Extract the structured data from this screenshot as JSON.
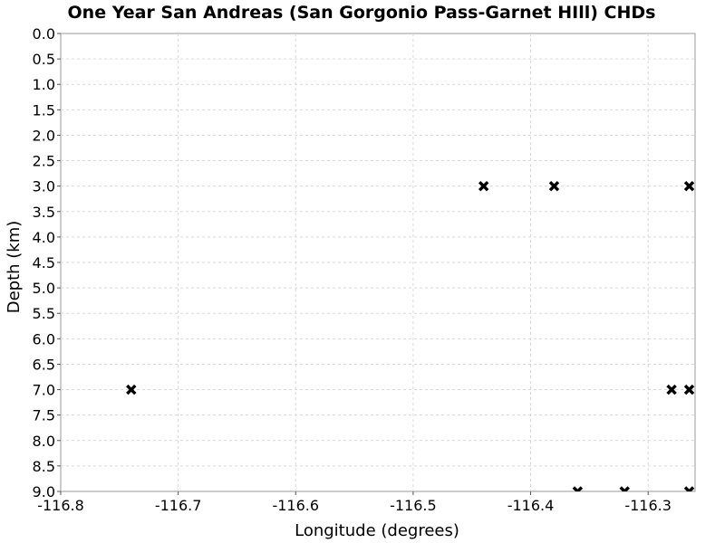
{
  "chart_data": {
    "type": "scatter",
    "title": "One Year San Andreas (San Gorgonio Pass-Garnet HIll) CHDs",
    "xlabel": "Longitude (degrees)",
    "ylabel": "Depth (km)",
    "xlim": [
      -116.8,
      -116.26
    ],
    "ylim": [
      0.0,
      9.0
    ],
    "y_inverted": true,
    "grid": true,
    "marker": "x",
    "x_ticks": [
      "-116.8",
      "-116.7",
      "-116.6",
      "-116.5",
      "-116.4",
      "-116.3"
    ],
    "y_ticks": [
      "0.0",
      "0.5",
      "1.0",
      "1.5",
      "2.0",
      "2.5",
      "3.0",
      "3.5",
      "4.0",
      "4.5",
      "5.0",
      "5.5",
      "6.0",
      "6.5",
      "7.0",
      "7.5",
      "8.0",
      "8.5",
      "9.0"
    ],
    "points": [
      {
        "x": -116.44,
        "y": 3.0
      },
      {
        "x": -116.38,
        "y": 3.0
      },
      {
        "x": -116.265,
        "y": 3.0
      },
      {
        "x": -116.74,
        "y": 7.0
      },
      {
        "x": -116.28,
        "y": 7.0
      },
      {
        "x": -116.265,
        "y": 7.0
      },
      {
        "x": -116.36,
        "y": 9.0
      },
      {
        "x": -116.32,
        "y": 9.0
      },
      {
        "x": -116.265,
        "y": 9.0
      }
    ]
  }
}
